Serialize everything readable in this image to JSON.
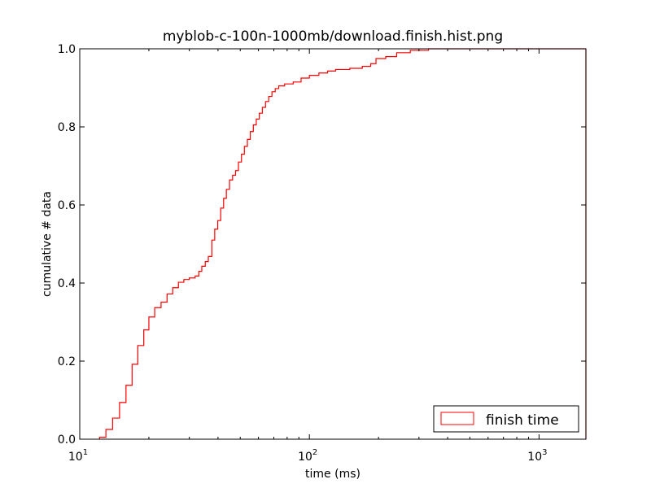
{
  "chart_data": {
    "type": "line",
    "title": "myblob-c-100n-1000mb/download.finish.hist.png",
    "xlabel": "time (ms)",
    "ylabel": "cumulative # data",
    "xscale": "log",
    "xlim": [
      10,
      1600
    ],
    "ylim": [
      0.0,
      1.0
    ],
    "grid": false,
    "legend": {
      "placement": "lower-right",
      "entries": [
        "finish time"
      ]
    },
    "x_ticks": [
      {
        "value": 10,
        "base": "10",
        "exp": "1"
      },
      {
        "value": 100,
        "base": "10",
        "exp": "2"
      },
      {
        "value": 1000,
        "base": "10",
        "exp": "3"
      }
    ],
    "y_ticks": [
      {
        "value": 0.0,
        "label": "0.0"
      },
      {
        "value": 0.2,
        "label": "0.2"
      },
      {
        "value": 0.4,
        "label": "0.4"
      },
      {
        "value": 0.6,
        "label": "0.6"
      },
      {
        "value": 0.8,
        "label": "0.8"
      },
      {
        "value": 1.0,
        "label": "1.0"
      }
    ],
    "series": [
      {
        "name": "finish time",
        "color": "#ff0000",
        "step": true,
        "points": [
          [
            12.2,
            0.0
          ],
          [
            12.2,
            0.005
          ],
          [
            13.0,
            0.005
          ],
          [
            13.0,
            0.025
          ],
          [
            13.9,
            0.025
          ],
          [
            13.9,
            0.054
          ],
          [
            14.9,
            0.054
          ],
          [
            14.9,
            0.094
          ],
          [
            15.9,
            0.094
          ],
          [
            15.9,
            0.138
          ],
          [
            16.9,
            0.138
          ],
          [
            16.9,
            0.192
          ],
          [
            17.9,
            0.192
          ],
          [
            17.9,
            0.24
          ],
          [
            19.0,
            0.24
          ],
          [
            19.0,
            0.28
          ],
          [
            20.0,
            0.28
          ],
          [
            20.0,
            0.313
          ],
          [
            21.2,
            0.313
          ],
          [
            21.2,
            0.337
          ],
          [
            22.6,
            0.337
          ],
          [
            22.6,
            0.351
          ],
          [
            24.0,
            0.351
          ],
          [
            24.0,
            0.372
          ],
          [
            25.4,
            0.372
          ],
          [
            25.4,
            0.388
          ],
          [
            26.9,
            0.388
          ],
          [
            26.9,
            0.402
          ],
          [
            28.4,
            0.402
          ],
          [
            28.4,
            0.409
          ],
          [
            30.0,
            0.409
          ],
          [
            30.0,
            0.413
          ],
          [
            31.8,
            0.413
          ],
          [
            31.8,
            0.418
          ],
          [
            33.0,
            0.418
          ],
          [
            33.0,
            0.43
          ],
          [
            34.0,
            0.43
          ],
          [
            34.0,
            0.443
          ],
          [
            35.2,
            0.443
          ],
          [
            35.2,
            0.455
          ],
          [
            36.3,
            0.455
          ],
          [
            36.3,
            0.468
          ],
          [
            37.6,
            0.468
          ],
          [
            37.6,
            0.51
          ],
          [
            38.7,
            0.51
          ],
          [
            38.7,
            0.538
          ],
          [
            39.9,
            0.538
          ],
          [
            39.9,
            0.56
          ],
          [
            41.1,
            0.56
          ],
          [
            41.1,
            0.592
          ],
          [
            42.3,
            0.592
          ],
          [
            42.3,
            0.617
          ],
          [
            43.5,
            0.617
          ],
          [
            43.5,
            0.64
          ],
          [
            44.9,
            0.64
          ],
          [
            44.9,
            0.664
          ],
          [
            46.3,
            0.664
          ],
          [
            46.3,
            0.676
          ],
          [
            47.7,
            0.676
          ],
          [
            47.7,
            0.688
          ],
          [
            49.1,
            0.688
          ],
          [
            49.1,
            0.71
          ],
          [
            50.6,
            0.71
          ],
          [
            50.6,
            0.73
          ],
          [
            52.1,
            0.73
          ],
          [
            52.1,
            0.75
          ],
          [
            53.7,
            0.75
          ],
          [
            53.7,
            0.768
          ],
          [
            55.3,
            0.768
          ],
          [
            55.3,
            0.788
          ],
          [
            57.0,
            0.788
          ],
          [
            57.0,
            0.805
          ],
          [
            58.7,
            0.805
          ],
          [
            58.7,
            0.82
          ],
          [
            60.5,
            0.82
          ],
          [
            60.5,
            0.835
          ],
          [
            62.4,
            0.835
          ],
          [
            62.4,
            0.85
          ],
          [
            64.4,
            0.85
          ],
          [
            64.4,
            0.865
          ],
          [
            66.5,
            0.865
          ],
          [
            66.5,
            0.878
          ],
          [
            68.7,
            0.878
          ],
          [
            68.7,
            0.89
          ],
          [
            71.0,
            0.89
          ],
          [
            71.0,
            0.898
          ],
          [
            73.5,
            0.898
          ],
          [
            73.5,
            0.905
          ],
          [
            78.0,
            0.905
          ],
          [
            78.0,
            0.91
          ],
          [
            85.0,
            0.91
          ],
          [
            85.0,
            0.915
          ],
          [
            92.0,
            0.915
          ],
          [
            92.0,
            0.925
          ],
          [
            100.0,
            0.925
          ],
          [
            100.0,
            0.932
          ],
          [
            110.0,
            0.932
          ],
          [
            110.0,
            0.938
          ],
          [
            120.0,
            0.938
          ],
          [
            120.0,
            0.943
          ],
          [
            130.0,
            0.943
          ],
          [
            130.0,
            0.947
          ],
          [
            150.0,
            0.947
          ],
          [
            150.0,
            0.95
          ],
          [
            170.0,
            0.95
          ],
          [
            170.0,
            0.955
          ],
          [
            185.0,
            0.955
          ],
          [
            185.0,
            0.962
          ],
          [
            195.0,
            0.962
          ],
          [
            195.0,
            0.975
          ],
          [
            215.0,
            0.975
          ],
          [
            215.0,
            0.98
          ],
          [
            240.0,
            0.98
          ],
          [
            240.0,
            0.99
          ],
          [
            275.0,
            0.99
          ],
          [
            275.0,
            0.996
          ],
          [
            330.0,
            0.996
          ],
          [
            330.0,
            1.0
          ],
          [
            1600.0,
            1.0
          ]
        ]
      }
    ]
  }
}
